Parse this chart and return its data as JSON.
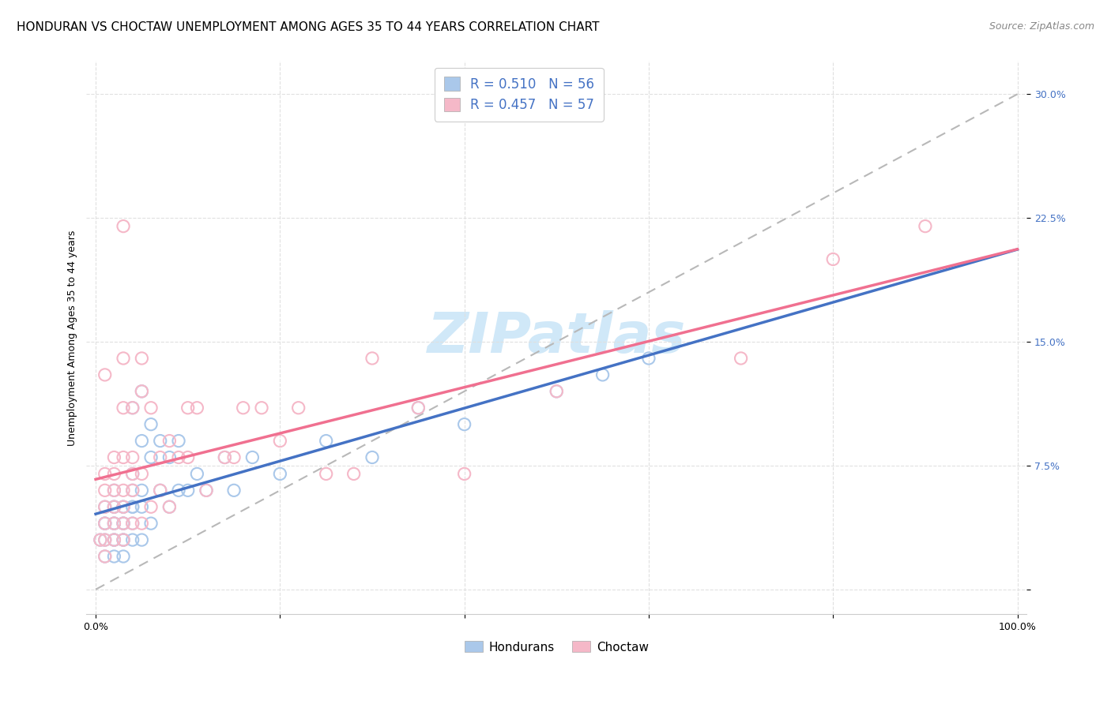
{
  "title": "HONDURAN VS CHOCTAW UNEMPLOYMENT AMONG AGES 35 TO 44 YEARS CORRELATION CHART",
  "source": "Source: ZipAtlas.com",
  "ylabel": "Unemployment Among Ages 35 to 44 years",
  "xlim": [
    -1,
    101
  ],
  "ylim": [
    -1.5,
    32
  ],
  "yticks": [
    0,
    7.5,
    15.0,
    22.5,
    30.0
  ],
  "xticks": [
    0,
    20,
    40,
    60,
    80,
    100
  ],
  "xtick_labels": [
    "0.0%",
    "",
    "",
    "",
    "",
    "100.0%"
  ],
  "ytick_labels": [
    "",
    "7.5%",
    "15.0%",
    "22.5%",
    "30.0%"
  ],
  "blue_R": 0.51,
  "blue_N": 56,
  "pink_R": 0.457,
  "pink_N": 57,
  "blue_color": "#aac8ea",
  "pink_color": "#f5b8c8",
  "blue_line_color": "#4472c4",
  "pink_line_color": "#f07090",
  "dashed_line_color": "#b8b8b8",
  "tick_color": "#4472c4",
  "watermark_color": "#d0e8f8",
  "background_color": "#ffffff",
  "grid_color": "#e0e0e0",
  "blue_scatter_x": [
    0.5,
    1,
    1,
    1,
    1,
    1,
    2,
    2,
    2,
    2,
    2,
    2,
    2,
    2,
    3,
    3,
    3,
    3,
    3,
    3,
    3,
    4,
    4,
    4,
    4,
    4,
    4,
    4,
    5,
    5,
    5,
    5,
    5,
    6,
    6,
    6,
    7,
    7,
    8,
    8,
    9,
    9,
    10,
    11,
    12,
    14,
    15,
    17,
    20,
    25,
    30,
    35,
    40,
    50,
    55,
    60
  ],
  "blue_scatter_y": [
    3,
    2,
    3,
    4,
    4,
    5,
    2,
    3,
    3,
    4,
    4,
    5,
    5,
    6,
    2,
    3,
    3,
    4,
    4,
    5,
    5,
    3,
    4,
    5,
    5,
    6,
    7,
    11,
    3,
    5,
    6,
    9,
    12,
    4,
    8,
    10,
    6,
    9,
    5,
    8,
    6,
    9,
    6,
    7,
    6,
    8,
    6,
    8,
    7,
    9,
    8,
    11,
    10,
    12,
    13,
    14
  ],
  "pink_scatter_x": [
    0.5,
    1,
    1,
    1,
    1,
    1,
    1,
    1,
    2,
    2,
    2,
    2,
    2,
    2,
    3,
    3,
    3,
    3,
    3,
    3,
    3,
    3,
    4,
    4,
    4,
    4,
    4,
    5,
    5,
    5,
    5,
    6,
    6,
    7,
    7,
    8,
    8,
    9,
    10,
    10,
    11,
    12,
    14,
    15,
    16,
    18,
    20,
    22,
    25,
    28,
    30,
    35,
    40,
    50,
    70,
    80,
    90
  ],
  "pink_scatter_y": [
    3,
    2,
    3,
    4,
    5,
    6,
    7,
    13,
    3,
    4,
    5,
    6,
    7,
    8,
    3,
    4,
    5,
    6,
    8,
    11,
    14,
    22,
    4,
    6,
    7,
    8,
    11,
    4,
    7,
    12,
    14,
    5,
    11,
    6,
    8,
    5,
    9,
    8,
    8,
    11,
    11,
    6,
    8,
    8,
    11,
    11,
    9,
    11,
    7,
    7,
    14,
    11,
    7,
    12,
    14,
    20,
    22
  ],
  "title_fontsize": 11,
  "axis_label_fontsize": 9,
  "tick_fontsize": 9,
  "legend_fontsize": 12,
  "watermark_fontsize": 52,
  "source_fontsize": 9
}
